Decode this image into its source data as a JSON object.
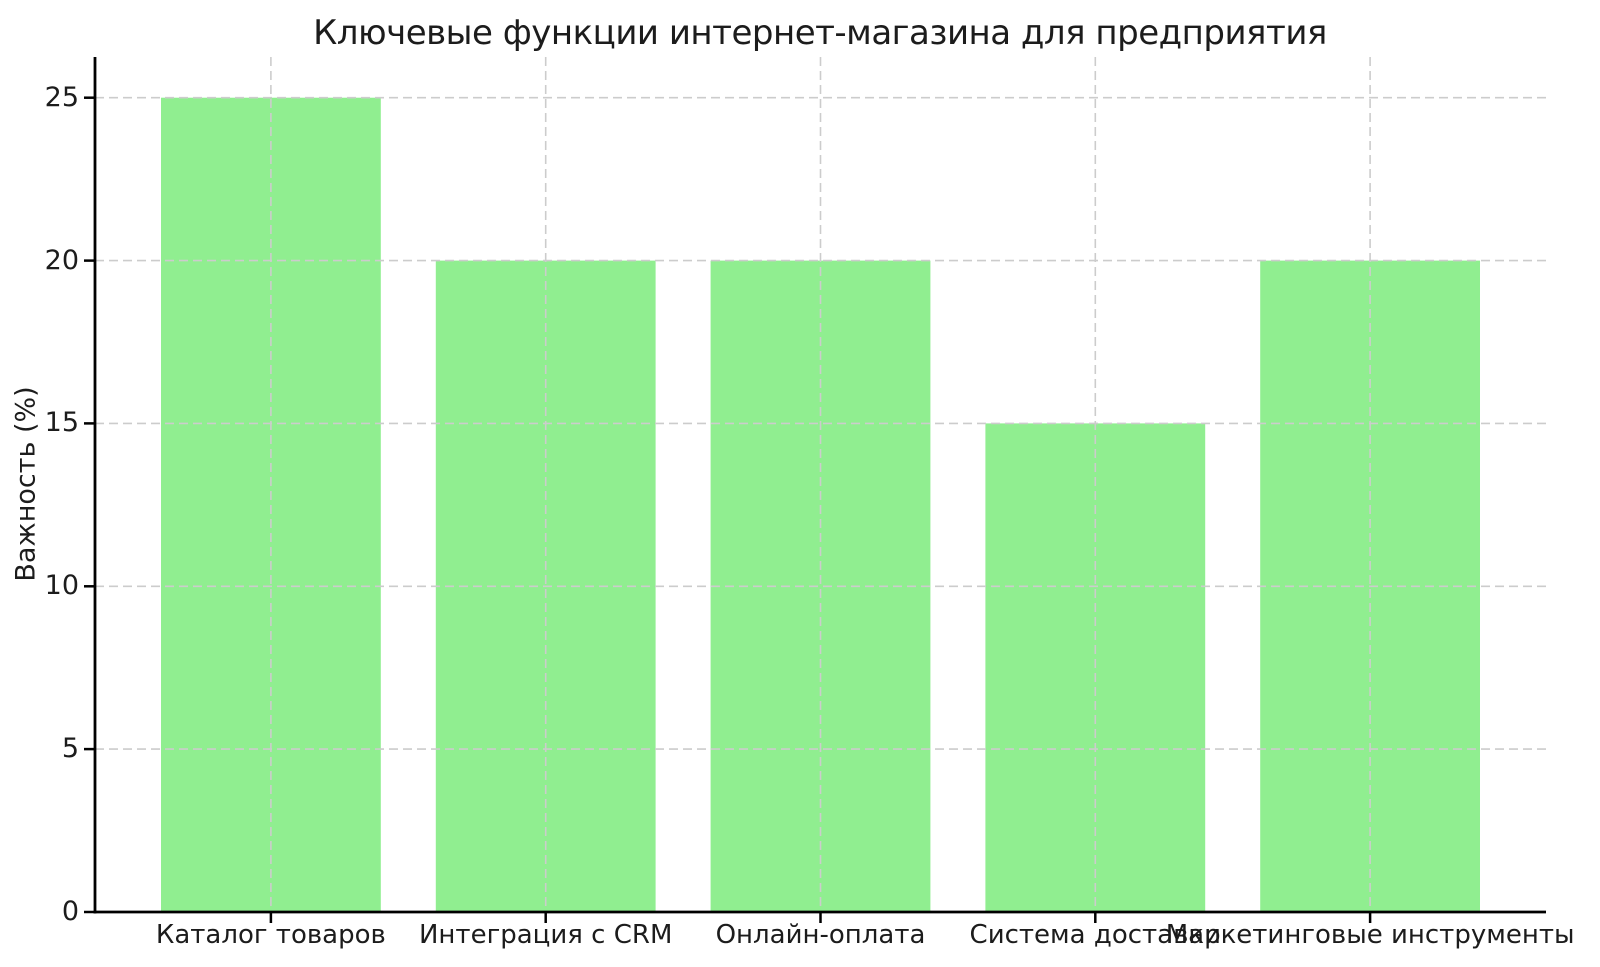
{
  "chart_data": {
    "type": "bar",
    "title": "Ключевые функции интернет-магазина для предприятия",
    "ylabel": "Важность (%)",
    "xlabel": "",
    "categories": [
      "Каталог товаров",
      "Интеграция с CRM",
      "Онлайн-оплата",
      "Система доставки",
      "Маркетинговые инструменты"
    ],
    "values": [
      25,
      20,
      20,
      15,
      20
    ],
    "yticks": [
      0,
      5,
      10,
      15,
      20,
      25
    ],
    "ylim": [
      0,
      26.25
    ],
    "bar_color": "#90ee90",
    "grid": true,
    "grid_color": "#cccccc",
    "grid_style": "dashed",
    "grid_above_bars": true,
    "axis_color": "#000000",
    "text_color": "#1c1c1c",
    "background": "#ffffff",
    "legend_position": "none"
  }
}
